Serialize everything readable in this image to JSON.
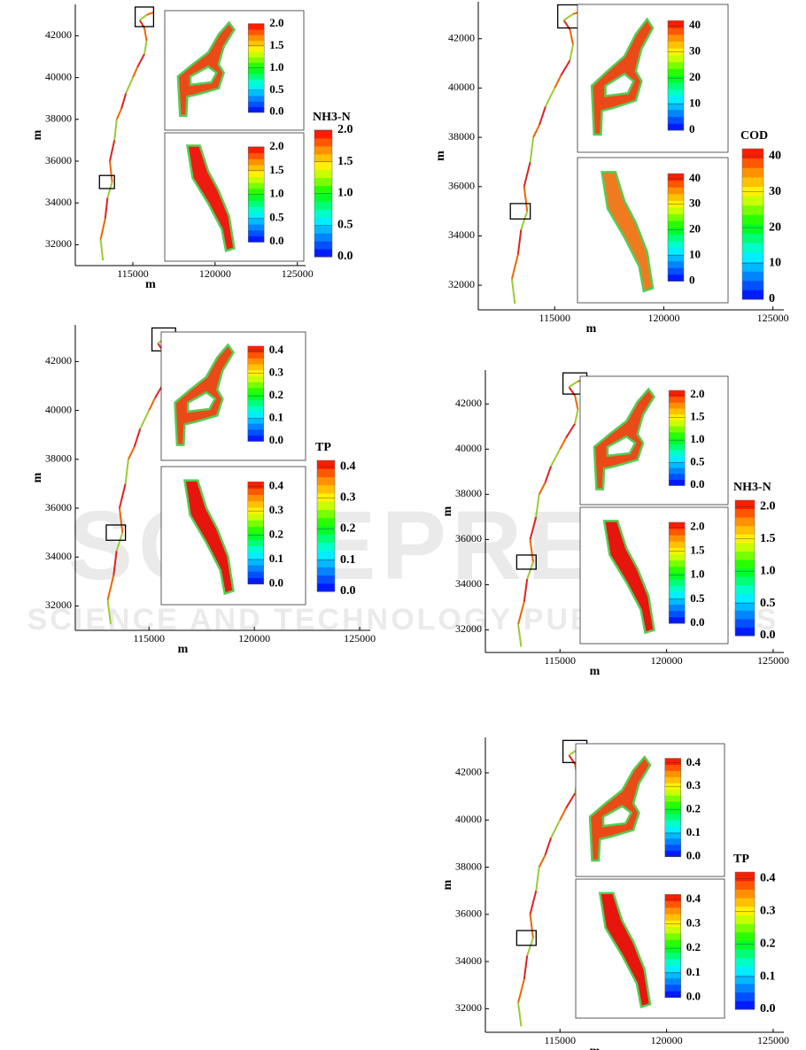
{
  "chart_data": [
    {
      "type": "map",
      "xlabel": "m",
      "ylabel": "m",
      "xlim": [
        111500,
        125500
      ],
      "ylim": [
        31000,
        43500
      ],
      "xticks": [
        115000,
        120000,
        125000
      ],
      "yticks": [
        32000,
        34000,
        36000,
        38000,
        40000,
        42000
      ],
      "colorbar": {
        "label": "NH3-N",
        "clim": [
          0,
          2
        ],
        "ticks": [
          {
            "value": 0,
            "label": "0.0"
          },
          0.5,
          {
            "value": 1,
            "label": "1.0"
          },
          1.5,
          {
            "value": 2,
            "label": "2.0"
          }
        ]
      }
    },
    {
      "type": "map",
      "xlabel": "m",
      "ylabel": "m",
      "xlim": [
        111500,
        125500
      ],
      "ylim": [
        31000,
        43500
      ],
      "xticks": [
        115000,
        120000,
        125000
      ],
      "yticks": [
        32000,
        34000,
        36000,
        38000,
        40000,
        42000
      ],
      "colorbar": {
        "label": "COD",
        "clim": [
          0,
          42
        ],
        "ticks": [
          0,
          10,
          20,
          30,
          40
        ]
      }
    },
    {
      "type": "map",
      "xlabel": "m",
      "ylabel": "m",
      "xlim": [
        111500,
        125500
      ],
      "ylim": [
        31000,
        43500
      ],
      "xticks": [
        115000,
        120000,
        125000
      ],
      "yticks": [
        32000,
        34000,
        36000,
        38000,
        40000,
        42000
      ],
      "colorbar": {
        "label": "TP",
        "clim": [
          0,
          0.42
        ],
        "ticks": [
          {
            "value": 0,
            "label": "0.0"
          },
          0.1,
          0.2,
          0.3,
          0.4
        ]
      }
    },
    {
      "type": "map",
      "xlabel": "m",
      "ylabel": "m",
      "xlim": [
        111500,
        125500
      ],
      "ylim": [
        31000,
        43500
      ],
      "xticks": [
        115000,
        120000,
        125000
      ],
      "yticks": [
        32000,
        34000,
        36000,
        38000,
        40000,
        42000
      ],
      "colorbar": {
        "label": "NH3-N",
        "clim": [
          0,
          2.1
        ],
        "ticks": [
          {
            "value": 0,
            "label": "0.0"
          },
          0.5,
          {
            "value": 1,
            "label": "1.0"
          },
          1.5,
          {
            "value": 2,
            "label": "2.0"
          }
        ]
      }
    },
    {
      "type": "map",
      "xlabel": "m",
      "ylabel": "m",
      "xlim": [
        111500,
        125500
      ],
      "ylim": [
        31000,
        43500
      ],
      "xticks": [
        115000,
        120000,
        125000
      ],
      "yticks": [
        32000,
        34000,
        36000,
        38000,
        40000,
        42000
      ],
      "colorbar": {
        "label": "TP",
        "clim": [
          0,
          0.42
        ],
        "ticks": [
          {
            "value": 0,
            "label": "0.0"
          },
          0.1,
          0.2,
          0.3,
          0.4
        ]
      }
    }
  ],
  "watermark": {
    "title": "SCITEPRESS",
    "subtitle": "SCIENCE AND TECHNOLOGY PUBLICATIONS"
  }
}
